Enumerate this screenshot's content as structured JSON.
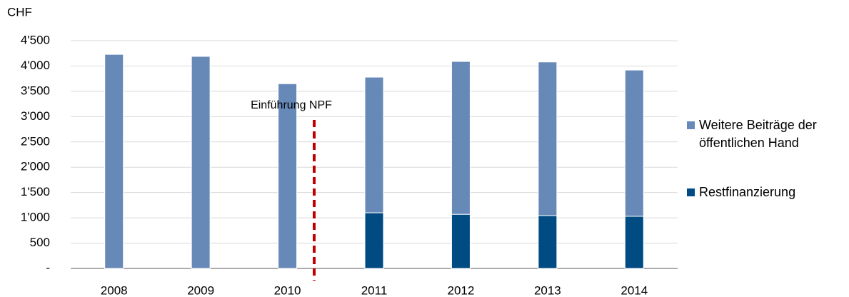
{
  "chart_data": {
    "type": "bar",
    "stacked": true,
    "y_label": "CHF",
    "annotation": "Einführung NPF",
    "categories": [
      "2008",
      "2009",
      "2010",
      "2011",
      "2012",
      "2013",
      "2014"
    ],
    "series": [
      {
        "name": "Weitere Beiträge der öffentlichen Hand",
        "color": "#6789b8",
        "values": [
          4230,
          4190,
          3650,
          2680,
          3020,
          3035,
          2890
        ]
      },
      {
        "name": "Restfinanzierung",
        "color": "#004b82",
        "values": [
          null,
          null,
          null,
          1100,
          1070,
          1045,
          1030
        ]
      }
    ],
    "ylim": [
      0,
      4500
    ],
    "yticks": [
      {
        "value": 0,
        "label": "-"
      },
      500,
      {
        "value": 1000,
        "label": "1'000"
      },
      {
        "value": 1500,
        "label": "1'500"
      },
      {
        "value": 2000,
        "label": "2'000"
      },
      {
        "value": 2500,
        "label": "2'500"
      },
      {
        "value": 3000,
        "label": "3'000"
      },
      {
        "value": 3500,
        "label": "3'500"
      },
      {
        "value": 4000,
        "label": "4'000"
      },
      {
        "value": 4500,
        "label": "4'500"
      }
    ],
    "grid": true
  }
}
